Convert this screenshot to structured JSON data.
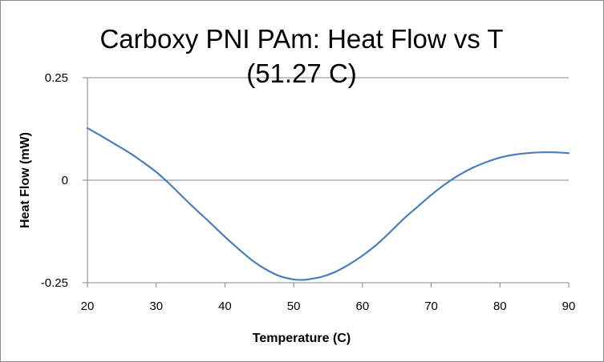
{
  "chart_data": {
    "type": "line",
    "title_lines": [
      "Carboxy PNI PAm: Heat Flow vs T",
      "(51.27 C)"
    ],
    "xlabel": "Temperature (C)",
    "ylabel": "Heat Flow (mW)",
    "xlim": [
      20,
      90
    ],
    "ylim": [
      -0.25,
      0.25
    ],
    "x_ticks": [
      "20",
      "30",
      "40",
      "50",
      "60",
      "70",
      "80",
      "90"
    ],
    "y_ticks": [
      "0.25",
      "0",
      "-0.25"
    ],
    "grid": "horizontal",
    "legend": "none",
    "line_color": "#4a7ebb",
    "series": [
      {
        "name": "Heat Flow",
        "x": [
          20,
          22,
          24,
          26,
          28,
          30,
          32,
          34,
          36,
          38,
          40,
          42,
          44,
          46,
          48,
          50,
          51.3,
          52,
          54,
          56,
          58,
          60,
          62,
          64,
          66,
          68,
          70,
          72,
          74,
          76,
          78,
          80,
          82,
          84,
          86,
          88,
          90
        ],
        "y": [
          0.127,
          0.108,
          0.088,
          0.068,
          0.045,
          0.02,
          -0.01,
          -0.043,
          -0.075,
          -0.106,
          -0.138,
          -0.168,
          -0.196,
          -0.218,
          -0.234,
          -0.242,
          -0.243,
          -0.242,
          -0.236,
          -0.224,
          -0.206,
          -0.184,
          -0.158,
          -0.127,
          -0.094,
          -0.065,
          -0.036,
          -0.01,
          0.012,
          0.03,
          0.044,
          0.055,
          0.062,
          0.066,
          0.068,
          0.068,
          0.066
        ]
      }
    ]
  }
}
